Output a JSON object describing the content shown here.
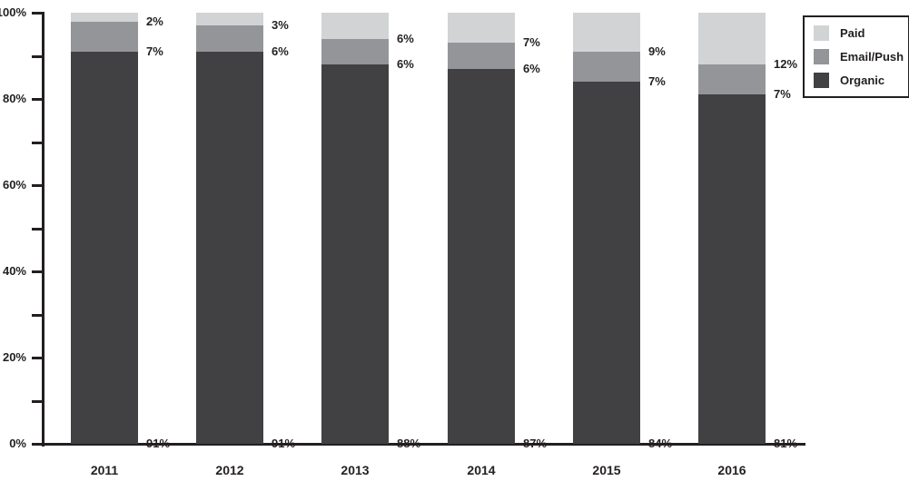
{
  "chart_data": {
    "type": "bar",
    "subtype": "stacked-percentage-column",
    "title": "",
    "xlabel": "",
    "ylabel": "",
    "categories": [
      "2011",
      "2012",
      "2013",
      "2014",
      "2015",
      "2016"
    ],
    "series": [
      {
        "name": "Organic",
        "color": "#414042",
        "values": [
          91,
          91,
          88,
          87,
          84,
          81
        ]
      },
      {
        "name": "Email/Push",
        "color": "#939598",
        "values": [
          7,
          6,
          6,
          6,
          7,
          7
        ]
      },
      {
        "name": "Paid",
        "color": "#d1d3d4",
        "values": [
          2,
          3,
          6,
          7,
          9,
          12
        ]
      }
    ],
    "data_labels": {
      "visible": true,
      "suffix": "%",
      "position": "right-of-bar-at-segment-bottom"
    },
    "y_axis": {
      "range": [
        0,
        100
      ],
      "tick_interval": 10,
      "ticks": [
        0,
        10,
        20,
        30,
        40,
        50,
        60,
        70,
        80,
        90,
        100
      ],
      "labeled_ticks": [
        0,
        20,
        40,
        60,
        80,
        100
      ],
      "label_suffix": "%"
    },
    "legend": {
      "position": "top-right",
      "border": true,
      "entries": [
        "Paid",
        "Email/Push",
        "Organic"
      ]
    },
    "grid": "off",
    "text_color": "#231f20",
    "background_color": "#ffffff"
  }
}
